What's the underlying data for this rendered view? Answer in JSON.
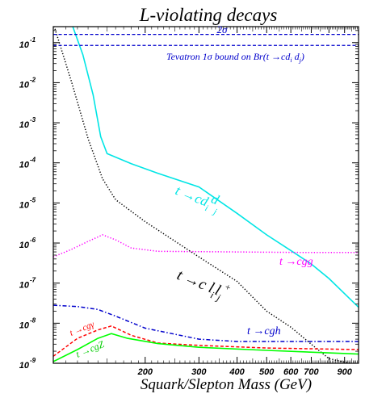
{
  "chart_data": {
    "type": "line",
    "title": "L-violating decays",
    "xlabel": "Squark/Slepton Mass (GeV)",
    "ylabel": "",
    "xscale": "log",
    "yscale": "log",
    "xlim": [
      100,
      1000
    ],
    "ylim": [
      1e-09,
      0.25
    ],
    "xtick_labels": [
      "200",
      "300",
      "400",
      "500",
      "600",
      "700",
      "900"
    ],
    "xtick_values": [
      200,
      300,
      400,
      500,
      600,
      700,
      900
    ],
    "ytick_exponents": [
      "-1",
      "-2",
      "-3",
      "-4",
      "-5",
      "-6",
      "-7",
      "-8",
      "-9"
    ],
    "ytick_base": "10",
    "grid": false,
    "series": [
      {
        "name": "t → cd_i d_j",
        "color": "#00e5e5",
        "style": "solid",
        "points": [
          [
            114,
            0.35
          ],
          [
            125,
            0.05
          ],
          [
            135,
            0.005
          ],
          [
            143,
            0.00045
          ],
          [
            150,
            0.00017
          ],
          [
            180,
            9.5e-05
          ],
          [
            220,
            5.5e-05
          ],
          [
            300,
            2.5e-05
          ],
          [
            400,
            5.5e-06
          ],
          [
            500,
            1.6e-06
          ],
          [
            600,
            6.5e-07
          ],
          [
            700,
            3e-07
          ],
          [
            800,
            1.3e-07
          ],
          [
            1000,
            2.5e-08
          ]
        ]
      },
      {
        "name": "t → cgg",
        "color": "#ff00ff",
        "style": "dotted",
        "points": [
          [
            100,
            4.5e-07
          ],
          [
            115,
            7e-07
          ],
          [
            130,
            1.1e-06
          ],
          [
            145,
            1.6e-06
          ],
          [
            160,
            1.2e-06
          ],
          [
            180,
            7.5e-07
          ],
          [
            220,
            6.2e-07
          ],
          [
            400,
            6e-07
          ],
          [
            700,
            5.8e-07
          ],
          [
            1000,
            5.8e-07
          ]
        ]
      },
      {
        "name": "t → c l_i l_j",
        "color": "#000000",
        "style": "dotted",
        "points": [
          [
            100,
            0.3
          ],
          [
            115,
            0.01
          ],
          [
            130,
            0.0004
          ],
          [
            145,
            4e-05
          ],
          [
            160,
            1.2e-05
          ],
          [
            200,
            3.4e-06
          ],
          [
            300,
            4.5e-07
          ],
          [
            400,
            1.1e-07
          ],
          [
            500,
            2e-08
          ],
          [
            600,
            8e-09
          ],
          [
            700,
            3e-09
          ],
          [
            800,
            1.3e-09
          ],
          [
            1000,
            9e-10
          ]
        ]
      },
      {
        "name": "t → cgh",
        "color": "#0000cc",
        "style": "dashdot",
        "points": [
          [
            100,
            2.8e-08
          ],
          [
            120,
            2.6e-08
          ],
          [
            140,
            2.2e-08
          ],
          [
            160,
            1.5e-08
          ],
          [
            200,
            7.5e-09
          ],
          [
            300,
            4e-09
          ],
          [
            400,
            3.5e-09
          ],
          [
            600,
            3.5e-09
          ],
          [
            1000,
            3.5e-09
          ]
        ]
      },
      {
        "name": "t → cgγ",
        "color": "#ff0000",
        "style": "dashed",
        "points": [
          [
            100,
            1.5e-09
          ],
          [
            120,
            4.2e-09
          ],
          [
            140,
            6.8e-09
          ],
          [
            155,
            8.5e-09
          ],
          [
            180,
            5e-09
          ],
          [
            220,
            3.2e-09
          ],
          [
            300,
            2.8e-09
          ],
          [
            500,
            2.4e-09
          ],
          [
            1000,
            2.2e-09
          ]
        ]
      },
      {
        "name": "t → cgZ",
        "color": "#00ff00",
        "style": "solid",
        "points": [
          [
            100,
            1.1e-09
          ],
          [
            120,
            2.2e-09
          ],
          [
            140,
            4.2e-09
          ],
          [
            155,
            5.5e-09
          ],
          [
            175,
            4.2e-09
          ],
          [
            220,
            3.1e-09
          ],
          [
            300,
            2.5e-09
          ],
          [
            500,
            2.1e-09
          ],
          [
            1000,
            1.7e-09
          ]
        ]
      }
    ],
    "hlines": [
      {
        "label": "2σ",
        "y": 0.16,
        "color": "#0000cc",
        "style": "dashed"
      },
      {
        "label": "Tevatron 1σ bound on Br(t →cd_i d_j)",
        "y": 0.085,
        "color": "#0000cc",
        "style": "dashed"
      }
    ]
  },
  "annotations": {
    "two_sigma": "2σ",
    "tevatron": "Tevatron 1σ bound on Br(t →cd",
    "tevatron_sub_i": "i",
    "tevatron_mid": " d",
    "tevatron_sub_j": "j",
    "tevatron_end": ")",
    "cdd_main": "t →cd",
    "cdd_sub_i": "i",
    "cdd_sub_j": "j",
    "cdd_bar": "d",
    "cgg": "t →cgg",
    "cll_main": "t →c l",
    "cll_sub_i": "i",
    "cll_l": "l",
    "cll_sub_j": "j",
    "cll_sup": "+",
    "cgh": "t →cgh",
    "cgamma": "t →cgγ",
    "cgz": "t →cgZ"
  },
  "colors": {
    "cyan": "#00e5e5",
    "magenta": "#ff00ff",
    "black": "#000000",
    "blue": "#0000cc",
    "red": "#ff0000",
    "green": "#00ff00"
  }
}
